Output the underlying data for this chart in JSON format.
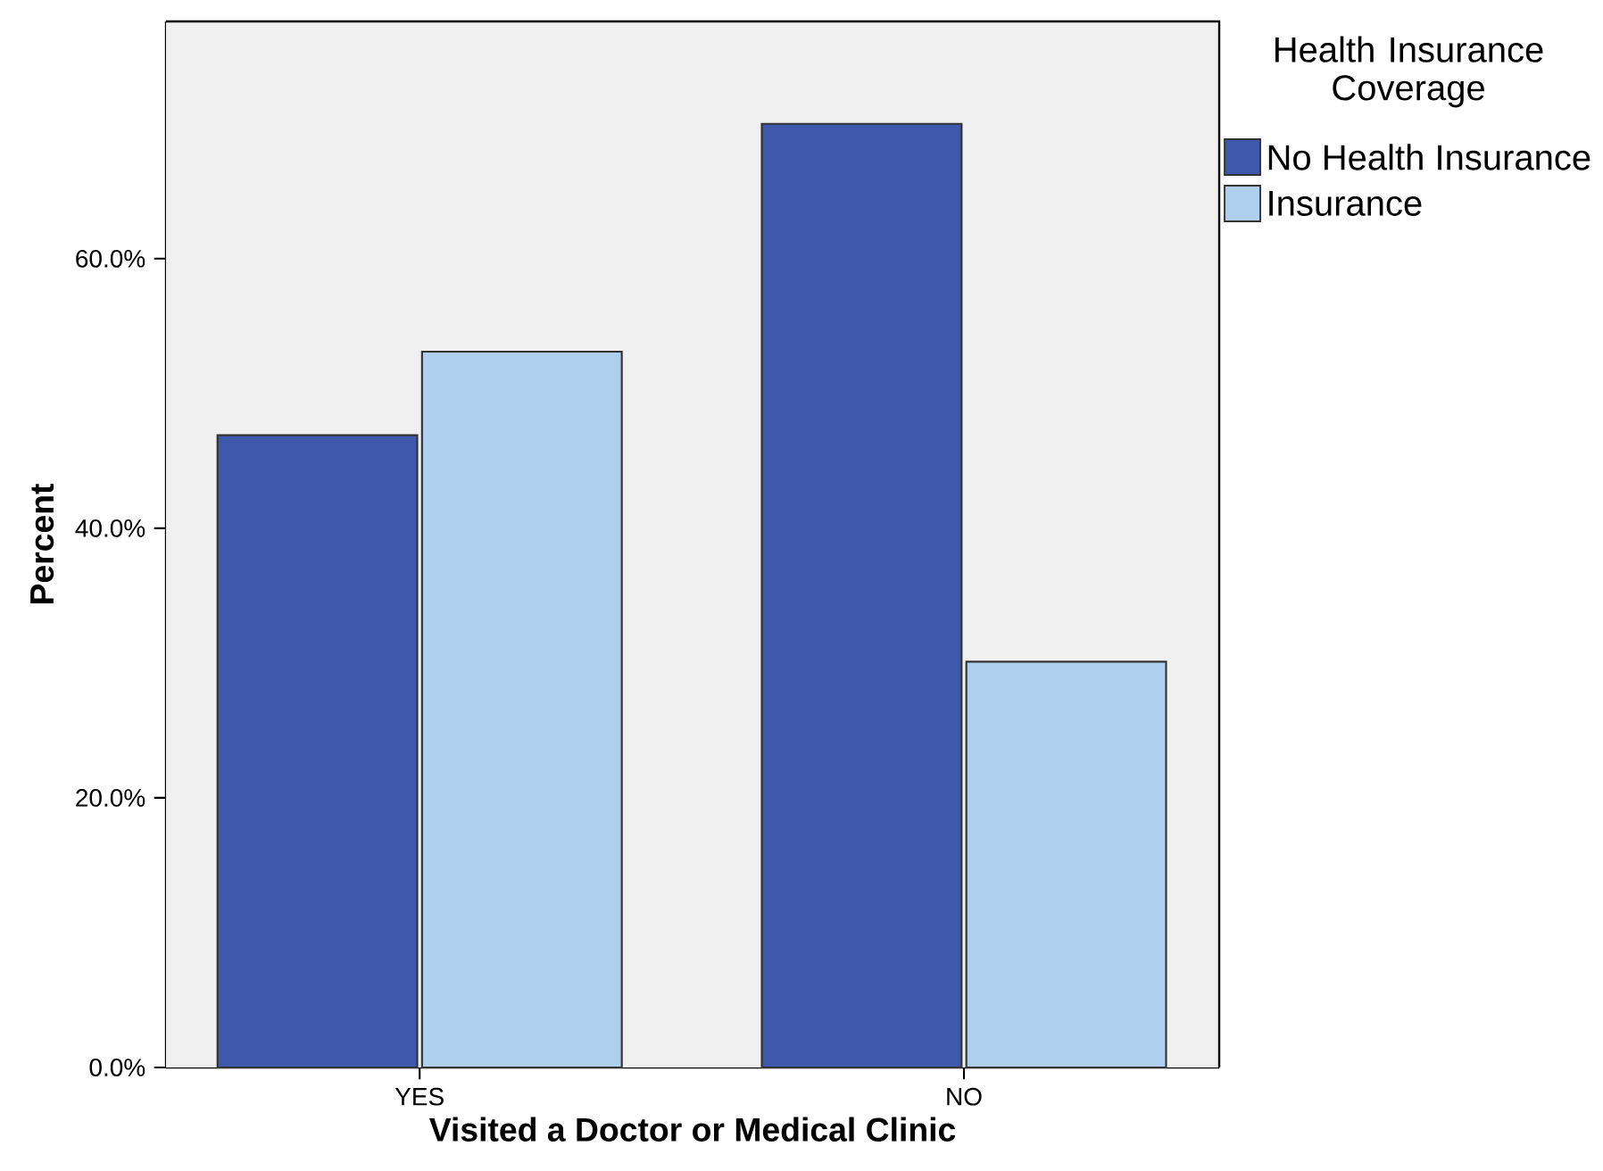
{
  "chart_data": {
    "type": "bar",
    "xlabel": "Visited a Doctor or Medical Clinic",
    "ylabel": "Percent",
    "legend_title": "Health Insurance Coverage",
    "categories": [
      "YES",
      "NO"
    ],
    "series": [
      {
        "name": "No Health Insurance",
        "color": "#3e58ac",
        "values": [
          46.9,
          70.0
        ]
      },
      {
        "name": "Insurance",
        "color": "#aecfed",
        "values": [
          53.1,
          30.1
        ]
      }
    ],
    "ylim": [
      0,
      77.6
    ],
    "yticks": [
      {
        "value": 0,
        "label": "0.0%"
      },
      {
        "value": 20,
        "label": "20.0%"
      },
      {
        "value": 40,
        "label": "40.0%"
      },
      {
        "value": 60,
        "label": "60.0%"
      }
    ],
    "legend": "right"
  }
}
